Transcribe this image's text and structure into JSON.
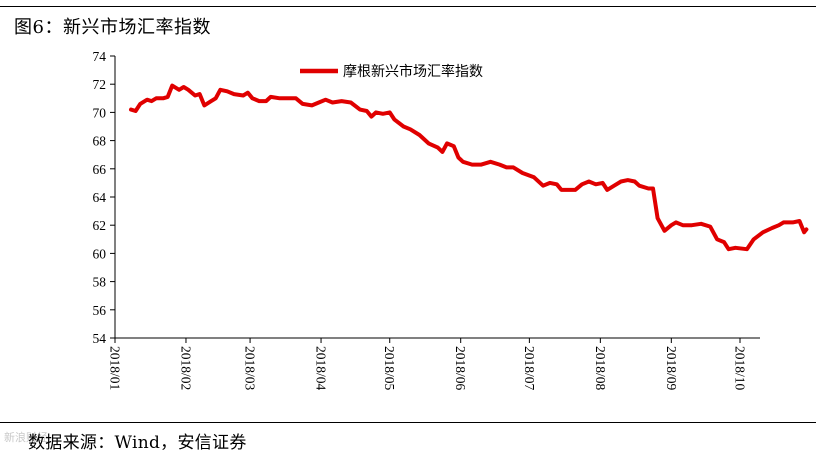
{
  "figure": {
    "title": "图6：新兴市场汇率指数",
    "source": "数据来源：Wind，安信证券",
    "watermark": "新浪财经"
  },
  "chart_data": {
    "type": "line",
    "title": "",
    "xlabel": "",
    "ylabel": "",
    "ylim": [
      54,
      74
    ],
    "yticks": [
      54,
      56,
      58,
      60,
      62,
      64,
      66,
      68,
      70,
      72,
      74
    ],
    "xticks": [
      "2018/01",
      "2018/02",
      "2018/03",
      "2018/04",
      "2018/05",
      "2018/06",
      "2018/07",
      "2018/08",
      "2018/09",
      "2018/10"
    ],
    "legend_position": "top-center",
    "grid": false,
    "series": [
      {
        "name": "摩根新兴市场汇率指数",
        "color": "#e00000",
        "points": [
          [
            "2018-01-08",
            70.2
          ],
          [
            "2018-01-10",
            70.1
          ],
          [
            "2018-01-12",
            70.6
          ],
          [
            "2018-01-15",
            70.9
          ],
          [
            "2018-01-17",
            70.8
          ],
          [
            "2018-01-19",
            71.0
          ],
          [
            "2018-01-22",
            71.0
          ],
          [
            "2018-01-24",
            71.1
          ],
          [
            "2018-01-26",
            71.9
          ],
          [
            "2018-01-29",
            71.6
          ],
          [
            "2018-01-31",
            71.8
          ],
          [
            "2018-02-02",
            71.6
          ],
          [
            "2018-02-05",
            71.2
          ],
          [
            "2018-02-07",
            71.3
          ],
          [
            "2018-02-09",
            70.5
          ],
          [
            "2018-02-12",
            70.8
          ],
          [
            "2018-02-14",
            71.0
          ],
          [
            "2018-02-16",
            71.6
          ],
          [
            "2018-02-19",
            71.5
          ],
          [
            "2018-02-22",
            71.3
          ],
          [
            "2018-02-26",
            71.2
          ],
          [
            "2018-02-28",
            71.4
          ],
          [
            "2018-03-02",
            71.0
          ],
          [
            "2018-03-05",
            70.8
          ],
          [
            "2018-03-08",
            70.8
          ],
          [
            "2018-03-10",
            71.1
          ],
          [
            "2018-03-14",
            71.0
          ],
          [
            "2018-03-18",
            71.0
          ],
          [
            "2018-03-21",
            71.0
          ],
          [
            "2018-03-24",
            70.6
          ],
          [
            "2018-03-28",
            70.5
          ],
          [
            "2018-03-31",
            70.7
          ],
          [
            "2018-04-03",
            70.9
          ],
          [
            "2018-04-06",
            70.7
          ],
          [
            "2018-04-10",
            70.8
          ],
          [
            "2018-04-14",
            70.7
          ],
          [
            "2018-04-18",
            70.2
          ],
          [
            "2018-04-21",
            70.1
          ],
          [
            "2018-04-23",
            69.7
          ],
          [
            "2018-04-25",
            70.0
          ],
          [
            "2018-04-28",
            69.9
          ],
          [
            "2018-05-01",
            70.0
          ],
          [
            "2018-05-03",
            69.5
          ],
          [
            "2018-05-07",
            69.0
          ],
          [
            "2018-05-10",
            68.8
          ],
          [
            "2018-05-14",
            68.4
          ],
          [
            "2018-05-18",
            67.8
          ],
          [
            "2018-05-22",
            67.5
          ],
          [
            "2018-05-24",
            67.2
          ],
          [
            "2018-05-26",
            67.8
          ],
          [
            "2018-05-29",
            67.6
          ],
          [
            "2018-05-31",
            66.8
          ],
          [
            "2018-06-02",
            66.5
          ],
          [
            "2018-06-06",
            66.3
          ],
          [
            "2018-06-10",
            66.3
          ],
          [
            "2018-06-14",
            66.5
          ],
          [
            "2018-06-18",
            66.3
          ],
          [
            "2018-06-21",
            66.1
          ],
          [
            "2018-06-24",
            66.1
          ],
          [
            "2018-06-28",
            65.7
          ],
          [
            "2018-07-03",
            65.4
          ],
          [
            "2018-07-07",
            64.8
          ],
          [
            "2018-07-10",
            65.0
          ],
          [
            "2018-07-13",
            64.9
          ],
          [
            "2018-07-15",
            64.5
          ],
          [
            "2018-07-18",
            64.5
          ],
          [
            "2018-07-21",
            64.5
          ],
          [
            "2018-07-24",
            64.9
          ],
          [
            "2018-07-27",
            65.1
          ],
          [
            "2018-07-30",
            64.9
          ],
          [
            "2018-08-02",
            65.0
          ],
          [
            "2018-08-04",
            64.5
          ],
          [
            "2018-08-07",
            64.8
          ],
          [
            "2018-08-10",
            65.1
          ],
          [
            "2018-08-13",
            65.2
          ],
          [
            "2018-08-16",
            65.1
          ],
          [
            "2018-08-18",
            64.8
          ],
          [
            "2018-08-22",
            64.6
          ],
          [
            "2018-08-24",
            64.6
          ],
          [
            "2018-08-26",
            62.5
          ],
          [
            "2018-08-29",
            61.6
          ],
          [
            "2018-09-01",
            62.0
          ],
          [
            "2018-09-03",
            62.2
          ],
          [
            "2018-09-06",
            62.0
          ],
          [
            "2018-09-10",
            62.0
          ],
          [
            "2018-09-14",
            62.1
          ],
          [
            "2018-09-18",
            61.9
          ],
          [
            "2018-09-21",
            61.0
          ],
          [
            "2018-09-24",
            60.8
          ],
          [
            "2018-09-26",
            60.3
          ],
          [
            "2018-09-29",
            60.4
          ],
          [
            "2018-10-04",
            60.3
          ],
          [
            "2018-10-07",
            61.0
          ],
          [
            "2018-10-11",
            61.5
          ],
          [
            "2018-10-15",
            61.8
          ],
          [
            "2018-10-18",
            62.0
          ],
          [
            "2018-10-20",
            62.2
          ],
          [
            "2018-10-24",
            62.2
          ],
          [
            "2018-10-27",
            62.3
          ],
          [
            "2018-10-29",
            61.5
          ],
          [
            "2018-10-30",
            61.7
          ]
        ]
      }
    ]
  }
}
